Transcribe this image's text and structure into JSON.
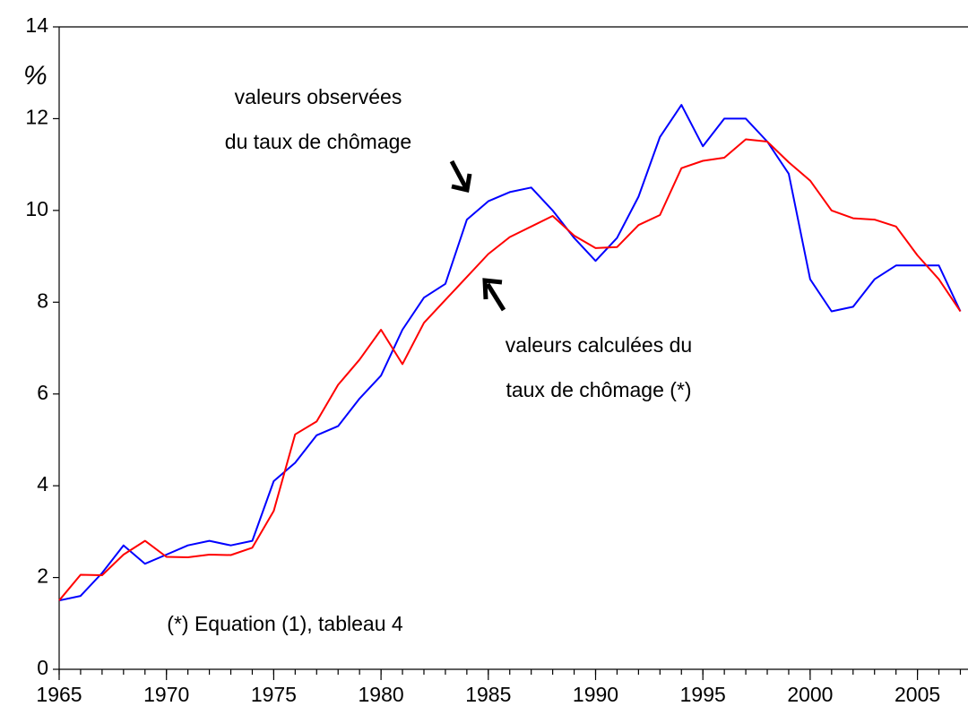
{
  "chart_data": {
    "type": "line",
    "y_label": "%",
    "annotations": [
      "valeurs observées",
      "du taux de chômage",
      "valeurs calculées du",
      "taux de chômage (*)",
      "(*) Equation (1), tableau 4"
    ],
    "x": [
      1965,
      1966,
      1967,
      1968,
      1969,
      1970,
      1971,
      1972,
      1973,
      1974,
      1975,
      1976,
      1977,
      1978,
      1979,
      1980,
      1981,
      1982,
      1983,
      1984,
      1985,
      1986,
      1987,
      1988,
      1989,
      1990,
      1991,
      1992,
      1993,
      1994,
      1995,
      1996,
      1997,
      1998,
      1999,
      2000,
      2001,
      2002,
      2003,
      2004,
      2005,
      2006,
      2007
    ],
    "series": [
      {
        "color": "#0000ff",
        "values": [
          1.5,
          1.6,
          2.1,
          2.7,
          2.3,
          2.5,
          2.7,
          2.8,
          2.7,
          2.8,
          4.1,
          4.5,
          5.1,
          5.3,
          5.9,
          6.4,
          7.4,
          8.1,
          8.4,
          9.8,
          10.2,
          10.4,
          10.5,
          10.0,
          9.4,
          8.9,
          9.4,
          10.3,
          11.6,
          12.3,
          11.4,
          12.0,
          12.0,
          11.5,
          10.8,
          8.5,
          7.8,
          7.9,
          8.5,
          8.8,
          8.8,
          8.8,
          7.8
        ]
      },
      {
        "color": "#ff0000",
        "values": [
          1.5,
          2.06,
          2.05,
          2.5,
          2.8,
          2.45,
          2.44,
          2.5,
          2.49,
          2.65,
          3.45,
          5.12,
          5.4,
          6.2,
          6.75,
          7.4,
          6.65,
          7.55,
          8.05,
          8.55,
          9.05,
          9.42,
          9.65,
          9.88,
          9.45,
          9.18,
          9.2,
          9.68,
          9.9,
          10.92,
          11.08,
          11.15,
          11.55,
          11.5,
          11.05,
          10.65,
          10.0,
          9.83,
          9.8,
          9.65,
          9.02,
          8.5,
          7.8
        ]
      }
    ],
    "xlim": [
      1965,
      2007.5
    ],
    "xticks": [
      1965,
      1970,
      1975,
      1980,
      1985,
      1990,
      1995,
      2000,
      2005
    ],
    "ylim": [
      0,
      14
    ],
    "yticks": [
      0,
      2,
      4,
      6,
      8,
      10,
      12,
      14
    ]
  }
}
